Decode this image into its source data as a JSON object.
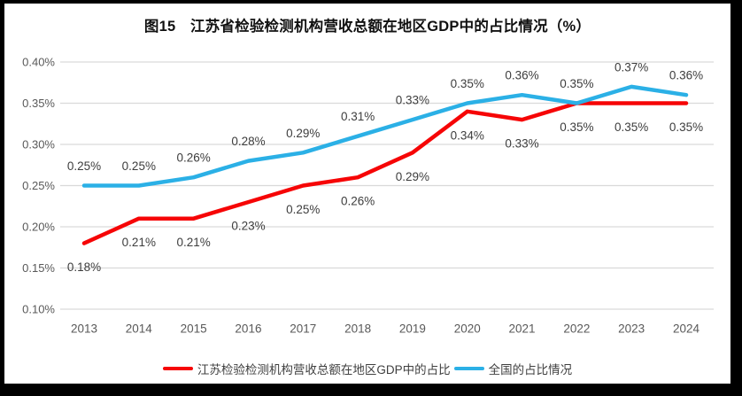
{
  "chart_data": {
    "type": "line",
    "title": "图15　江苏省检验检测机构营收总额在地区GDP中的占比情况（%）",
    "x": [
      "2013",
      "2014",
      "2015",
      "2016",
      "2017",
      "2018",
      "2019",
      "2020",
      "2021",
      "2022",
      "2023",
      "2024"
    ],
    "ylim": [
      0.1,
      0.4
    ],
    "ytick_step": 0.05,
    "yticks": [
      "0.40%",
      "0.35%",
      "0.30%",
      "0.25%",
      "0.20%",
      "0.15%",
      "0.10%"
    ],
    "grid": true,
    "legend_position": "bottom",
    "series": [
      {
        "name": "江苏检验检测机构营收总额在地区GDP中的占比",
        "color": "#f60506",
        "values": [
          0.18,
          0.21,
          0.21,
          0.23,
          0.25,
          0.26,
          0.29,
          0.34,
          0.33,
          0.35,
          0.35,
          0.35
        ],
        "labels": [
          "0.18%",
          "0.21%",
          "0.21%",
          "0.23%",
          "0.25%",
          "0.26%",
          "0.29%",
          "0.34%",
          "0.33%",
          "0.35%",
          "0.35%",
          "0.35%"
        ],
        "label_position": "below"
      },
      {
        "name": "全国的占比情况",
        "color": "#2bb0e6",
        "values": [
          0.25,
          0.25,
          0.26,
          0.28,
          0.29,
          0.31,
          0.33,
          0.35,
          0.36,
          0.35,
          0.37,
          0.36
        ],
        "labels": [
          "0.25%",
          "0.25%",
          "0.26%",
          "0.28%",
          "0.29%",
          "0.31%",
          "0.33%",
          "0.35%",
          "0.36%",
          "0.35%",
          "0.37%",
          "0.36%"
        ],
        "label_position": "above"
      }
    ]
  },
  "colors": {
    "frame": "#000000",
    "panel": "#ffffff",
    "gridline": "#d9d9d9",
    "axis_text": "#595959",
    "data_label_text": "#3d3d3d"
  }
}
